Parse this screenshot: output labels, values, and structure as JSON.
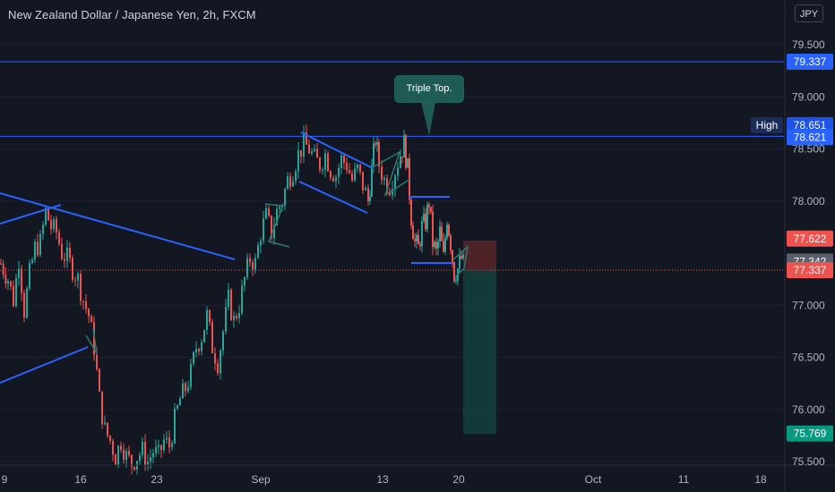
{
  "title": "New Zealand Dollar / Japanese Yen, 2h, FXCM",
  "currency_button": "JPY",
  "annotation": "Triple Top.",
  "colors": {
    "background": "#131722",
    "up": "#26a69a",
    "down": "#ef5350",
    "trendline": "#2962ff",
    "pattern": "#2a7a6f",
    "level_line": "#2962ff",
    "last_price_line": "#ef5350"
  },
  "chart_data": {
    "type": "candlestick",
    "y_axis": {
      "range": [
        75.45,
        79.9
      ],
      "ticks": [
        "79.500",
        "79.000",
        "78.500",
        "78.000",
        "77.000",
        "76.500",
        "76.000",
        "75.500"
      ]
    },
    "x_axis": {
      "ticks": [
        "9",
        "16",
        "23",
        "Sep",
        "13",
        "20",
        "Oct",
        "11",
        "18"
      ]
    },
    "price_labels": [
      {
        "text": "79.337",
        "value": 79.337,
        "kind": "level"
      },
      {
        "text": "High",
        "value": 78.651,
        "kind": "high-tag"
      },
      {
        "text": "78.651",
        "value": 78.651,
        "kind": "high"
      },
      {
        "text": "78.621",
        "value": 78.621,
        "kind": "level"
      },
      {
        "text": "77.622",
        "value": 77.622,
        "kind": "stop"
      },
      {
        "text": "77.342",
        "value": 77.342,
        "kind": "current"
      },
      {
        "text": "77.337",
        "value": 77.337,
        "kind": "last"
      },
      {
        "text": "75.769",
        "value": 75.769,
        "kind": "target"
      }
    ],
    "horizontal_levels": [
      79.337,
      78.621
    ],
    "last_price": 77.337,
    "position": {
      "type": "short",
      "entry": 77.337,
      "stop": 77.622,
      "target": 75.769
    },
    "path": [
      [
        0,
        77.4
      ],
      [
        8,
        77.25
      ],
      [
        14,
        77.05
      ],
      [
        20,
        77.45
      ],
      [
        26,
        76.95
      ],
      [
        32,
        77.3
      ],
      [
        38,
        77.55
      ],
      [
        44,
        77.6
      ],
      [
        50,
        77.9
      ],
      [
        56,
        77.75
      ],
      [
        62,
        77.7
      ],
      [
        68,
        77.5
      ],
      [
        74,
        77.45
      ],
      [
        80,
        77.35
      ],
      [
        86,
        77.25
      ],
      [
        92,
        77.05
      ],
      [
        98,
        76.9
      ],
      [
        104,
        76.6
      ],
      [
        110,
        76.1
      ],
      [
        116,
        75.8
      ],
      [
        122,
        75.7
      ],
      [
        128,
        75.55
      ],
      [
        134,
        75.7
      ],
      [
        140,
        75.55
      ],
      [
        146,
        75.48
      ],
      [
        152,
        75.55
      ],
      [
        158,
        75.6
      ],
      [
        164,
        75.5
      ],
      [
        170,
        75.6
      ],
      [
        176,
        75.55
      ],
      [
        182,
        75.7
      ],
      [
        188,
        75.65
      ],
      [
        194,
        75.9
      ],
      [
        200,
        76.1
      ],
      [
        206,
        76.2
      ],
      [
        212,
        76.35
      ],
      [
        218,
        76.6
      ],
      [
        224,
        76.7
      ],
      [
        230,
        76.9
      ],
      [
        236,
        76.6
      ],
      [
        242,
        76.45
      ],
      [
        248,
        76.75
      ],
      [
        254,
        77.05
      ],
      [
        260,
        76.85
      ],
      [
        266,
        77.0
      ],
      [
        272,
        77.25
      ],
      [
        278,
        77.45
      ],
      [
        284,
        77.4
      ],
      [
        290,
        77.7
      ],
      [
        296,
        77.85
      ],
      [
        302,
        77.7
      ],
      [
        308,
        77.9
      ],
      [
        314,
        78.0
      ],
      [
        320,
        78.2
      ],
      [
        326,
        78.3
      ],
      [
        332,
        78.45
      ],
      [
        338,
        78.55
      ],
      [
        344,
        78.5
      ],
      [
        350,
        78.4
      ],
      [
        356,
        78.35
      ],
      [
        362,
        78.45
      ],
      [
        368,
        78.3
      ],
      [
        374,
        78.25
      ],
      [
        380,
        78.4
      ],
      [
        386,
        78.35
      ],
      [
        392,
        78.2
      ],
      [
        398,
        78.3
      ],
      [
        404,
        78.15
      ],
      [
        410,
        78.0
      ],
      [
        414,
        78.3
      ],
      [
        418,
        78.6
      ],
      [
        422,
        78.35
      ],
      [
        428,
        78.2
      ],
      [
        434,
        78.15
      ],
      [
        440,
        78.3
      ],
      [
        446,
        78.45
      ],
      [
        450,
        78.55
      ],
      [
        454,
        78.3
      ],
      [
        458,
        77.85
      ],
      [
        462,
        77.6
      ],
      [
        466,
        77.55
      ],
      [
        470,
        77.75
      ],
      [
        474,
        77.8
      ],
      [
        478,
        78.0
      ],
      [
        482,
        77.6
      ],
      [
        486,
        77.5
      ],
      [
        490,
        77.7
      ],
      [
        494,
        77.45
      ],
      [
        498,
        77.85
      ],
      [
        502,
        77.6
      ],
      [
        506,
        77.3
      ],
      [
        510,
        77.35
      ],
      [
        514,
        77.45
      ],
      [
        518,
        77.34
      ]
    ]
  }
}
